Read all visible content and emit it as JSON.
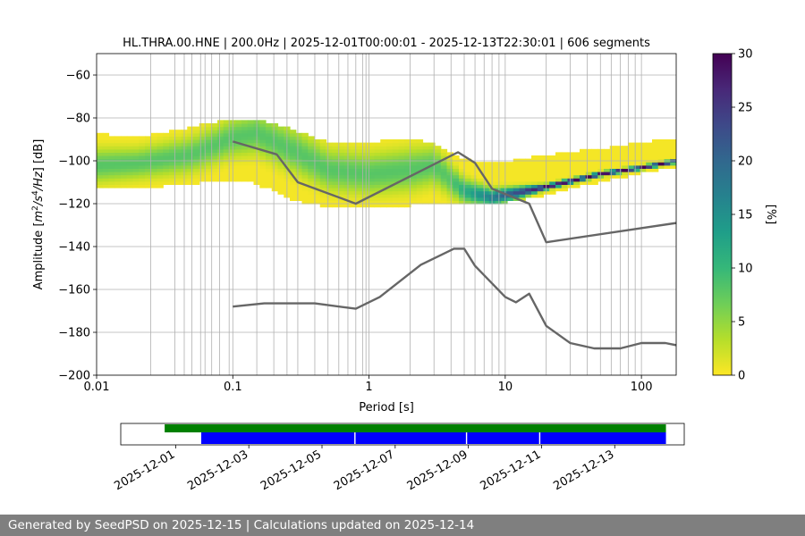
{
  "chart_data": [
    {
      "type": "heatmap",
      "title": "HL.THRA.00.HNE | 200.0Hz | 2025-12-01T00:00:01 - 2025-12-13T22:30:01 | 606 segments",
      "xlabel": "Period [s]",
      "ylabel_prefix": "Amplitude [",
      "ylabel_suffix": "] [dB]",
      "ylabel_unit_parts": [
        "m",
        "2",
        "/s",
        "4",
        "/Hz"
      ],
      "x_scale": "log",
      "xlim": [
        0.01,
        180
      ],
      "ylim": [
        -200,
        -50
      ],
      "grid": true,
      "x_ticks": [
        {
          "value": 0.01,
          "label": "0.01"
        },
        {
          "value": 0.1,
          "label": "0.1"
        },
        {
          "value": 1,
          "label": "1"
        },
        {
          "value": 10,
          "label": "10"
        },
        {
          "value": 100,
          "label": "100"
        }
      ],
      "y_ticks": [
        {
          "value": -60,
          "label": "−60"
        },
        {
          "value": -80,
          "label": "−80"
        },
        {
          "value": -100,
          "label": "−100"
        },
        {
          "value": -120,
          "label": "−120"
        },
        {
          "value": -140,
          "label": "−140"
        },
        {
          "value": -160,
          "label": "−160"
        },
        {
          "value": -180,
          "label": "−180"
        },
        {
          "value": -200,
          "label": "−200"
        }
      ],
      "period_grid_lines": [
        0.025,
        0.0375,
        0.044,
        0.05,
        0.058,
        0.0625,
        0.07,
        0.08,
        0.094,
        0.1,
        0.15,
        0.2,
        0.25,
        0.3,
        0.4,
        0.5,
        0.6,
        0.7,
        0.8,
        0.9,
        0.95,
        1,
        2,
        3,
        4,
        5,
        6,
        7,
        8,
        9,
        10,
        20,
        30,
        40,
        50,
        60,
        70,
        80,
        90,
        100
      ],
      "colorbar": {
        "label": "[%]",
        "range": [
          0,
          30
        ],
        "ticks": [
          {
            "value": 0,
            "label": "0"
          },
          {
            "value": 5,
            "label": "5"
          },
          {
            "value": 10,
            "label": "10"
          },
          {
            "value": 15,
            "label": "15"
          },
          {
            "value": 20,
            "label": "20"
          },
          {
            "value": 25,
            "label": "25"
          },
          {
            "value": 30,
            "label": "30"
          }
        ],
        "colors": [
          "#fde725",
          "#b5de2b",
          "#6ece58",
          "#35b779",
          "#1f9e89",
          "#26828e",
          "#31688e",
          "#3e4989",
          "#482878",
          "#440154"
        ]
      },
      "density_profile": [
        {
          "x": 0.01,
          "center": -102,
          "low": -112,
          "high": -88
        },
        {
          "x": 0.02,
          "center": -101,
          "low": -112,
          "high": -90
        },
        {
          "x": 0.05,
          "center": -97,
          "low": -110,
          "high": -85
        },
        {
          "x": 0.1,
          "center": -89,
          "low": -108,
          "high": -81
        },
        {
          "x": 0.15,
          "center": -87,
          "low": -110,
          "high": -81
        },
        {
          "x": 0.3,
          "center": -96,
          "low": -118,
          "high": -87
        },
        {
          "x": 0.5,
          "center": -104,
          "low": -121,
          "high": -92
        },
        {
          "x": 1,
          "center": -106,
          "low": -121,
          "high": -92
        },
        {
          "x": 2,
          "center": -104,
          "low": -120,
          "high": -90
        },
        {
          "x": 3,
          "center": -102,
          "low": -120,
          "high": -93
        },
        {
          "x": 5,
          "center": -114,
          "low": -120,
          "high": -100
        },
        {
          "x": 8,
          "center": -117,
          "low": -120,
          "high": -102
        },
        {
          "x": 20,
          "center": -112,
          "low": -115,
          "high": -98
        },
        {
          "x": 50,
          "center": -106,
          "low": -109,
          "high": -95
        },
        {
          "x": 100,
          "center": -103,
          "low": -105,
          "high": -92
        },
        {
          "x": 180,
          "center": -100,
          "low": -102,
          "high": -90
        }
      ],
      "series": [
        {
          "points": [
            [
              0.1,
              -91
            ],
            [
              0.21,
              -97
            ],
            [
              0.3,
              -110
            ],
            [
              0.8,
              -120
            ],
            [
              4.5,
              -96
            ],
            [
              6,
              -101
            ],
            [
              8,
              -113
            ],
            [
              15,
              -120
            ],
            [
              20,
              -138
            ],
            [
              180,
              -129
            ]
          ]
        },
        {
          "points": [
            [
              0.1,
              -168
            ],
            [
              0.17,
              -166.5
            ],
            [
              0.4,
              -166.5
            ],
            [
              0.8,
              -169
            ],
            [
              1.2,
              -163.5
            ],
            [
              2.4,
              -148.5
            ],
            [
              4.2,
              -141
            ],
            [
              5,
              -141
            ],
            [
              6,
              -149
            ],
            [
              10,
              -163.5
            ],
            [
              12,
              -166
            ],
            [
              15,
              -162
            ],
            [
              20,
              -177
            ],
            [
              30,
              -185
            ],
            [
              45,
              -187.5
            ],
            [
              70,
              -187.5
            ],
            [
              100,
              -185
            ],
            [
              150,
              -185
            ],
            [
              180,
              -186
            ]
          ]
        }
      ]
    },
    {
      "type": "timeline",
      "tick_labels": [
        "2025-12-01",
        "2025-12-03",
        "2025-12-05",
        "2025-12-07",
        "2025-12-09",
        "2025-12-11",
        "2025-12-13"
      ],
      "tick_days": [
        1,
        3,
        5,
        7,
        9,
        11,
        13
      ],
      "x_range_days": [
        -0.5,
        14.9
      ],
      "bars": [
        {
          "color": "#008000",
          "start_day": 0.7,
          "end_day": 14.4
        },
        {
          "color": "#0000ff",
          "start_day": 1.7,
          "end_day": 14.4
        }
      ],
      "gaps_days": [
        5.9,
        8.95,
        10.95
      ]
    }
  ],
  "footer": {
    "text": "Generated by SeedPSD on 2025-12-15 | Calculations updated on 2025-12-14"
  }
}
